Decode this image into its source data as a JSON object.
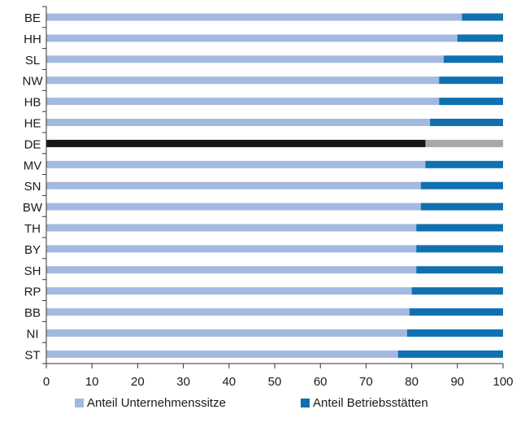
{
  "chart_data": {
    "type": "bar",
    "orientation": "horizontal",
    "stacked": true,
    "categories": [
      "BE",
      "HH",
      "SL",
      "NW",
      "HB",
      "HE",
      "DE",
      "MV",
      "SN",
      "BW",
      "TH",
      "BY",
      "SH",
      "RP",
      "BB",
      "NI",
      "ST"
    ],
    "series": [
      {
        "name": "Anteil Unternehmenssitze",
        "color": "#a3b9e0",
        "values": [
          91,
          90,
          87,
          86,
          86,
          84,
          83,
          83,
          82,
          82,
          81,
          81,
          81,
          80,
          79.5,
          79,
          77
        ]
      },
      {
        "name": "Anteil Betriebsstätten",
        "color": "#1070b0",
        "values": [
          9,
          10,
          13,
          14,
          14,
          16,
          17,
          17,
          18,
          18,
          19,
          19,
          19,
          20,
          20.5,
          21,
          23
        ]
      }
    ],
    "highlight": {
      "category": "DE",
      "colors": [
        "#161616",
        "#a8a8a8"
      ]
    },
    "xlim": [
      0,
      100
    ],
    "xticks": [
      "0",
      "10",
      "20",
      "30",
      "40",
      "50",
      "60",
      "70",
      "80",
      "90",
      "100"
    ],
    "grid": false,
    "legend_position": "bottom"
  }
}
